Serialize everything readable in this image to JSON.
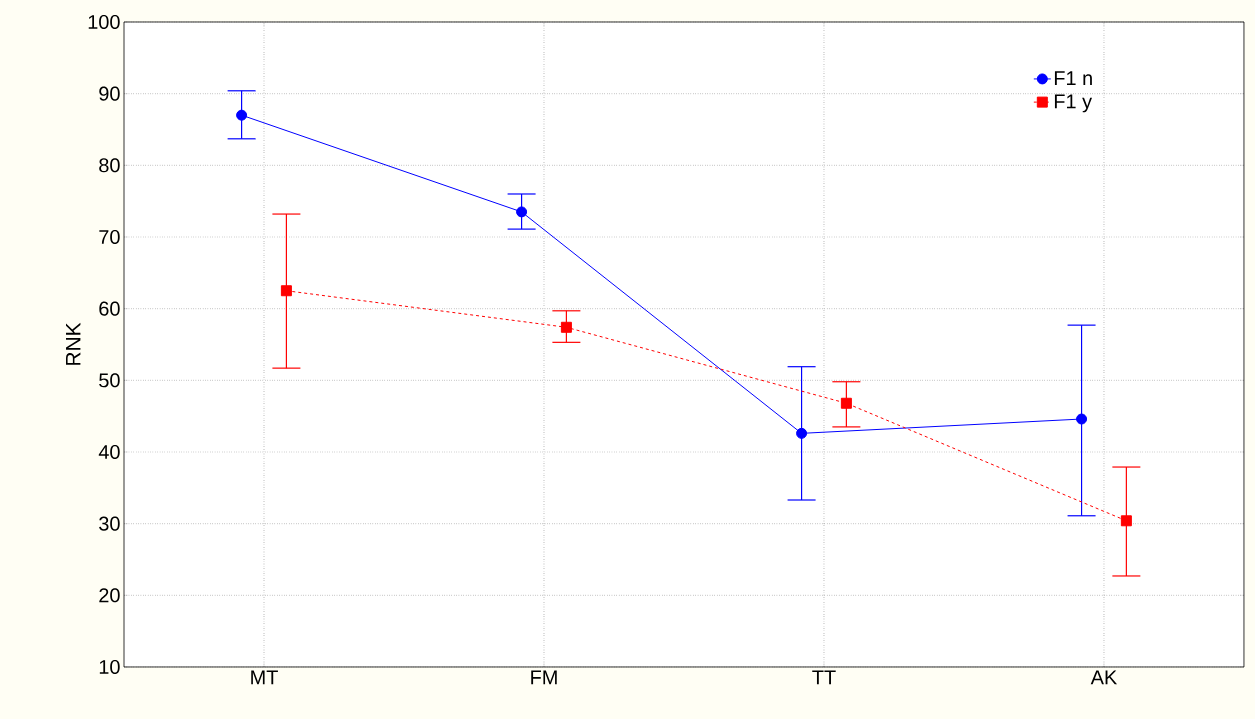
{
  "chart_data": {
    "type": "line",
    "ylabel": "RNK",
    "categories": [
      "MT",
      "FM",
      "TT",
      "AK"
    ],
    "series": [
      {
        "name": "F1 n",
        "color": "#0000ff",
        "marker": "circle",
        "line_style": "solid",
        "values": [
          87.0,
          73.5,
          42.6,
          44.6
        ],
        "errors": [
          [
            83.7,
            90.4
          ],
          [
            71.1,
            76.0
          ],
          [
            33.3,
            51.9
          ],
          [
            31.1,
            57.7
          ]
        ]
      },
      {
        "name": "F1 y",
        "color": "#ff0000",
        "marker": "square",
        "line_style": "dashed",
        "values": [
          62.5,
          57.4,
          46.8,
          30.4
        ],
        "errors": [
          [
            51.7,
            73.2
          ],
          [
            55.3,
            59.7
          ],
          [
            43.5,
            49.8
          ],
          [
            22.7,
            37.9
          ]
        ]
      }
    ],
    "ylim": [
      10,
      100
    ],
    "yticks": [
      10,
      20,
      30,
      40,
      50,
      60,
      70,
      80,
      90,
      100
    ],
    "grid": true,
    "legend": "top right"
  }
}
